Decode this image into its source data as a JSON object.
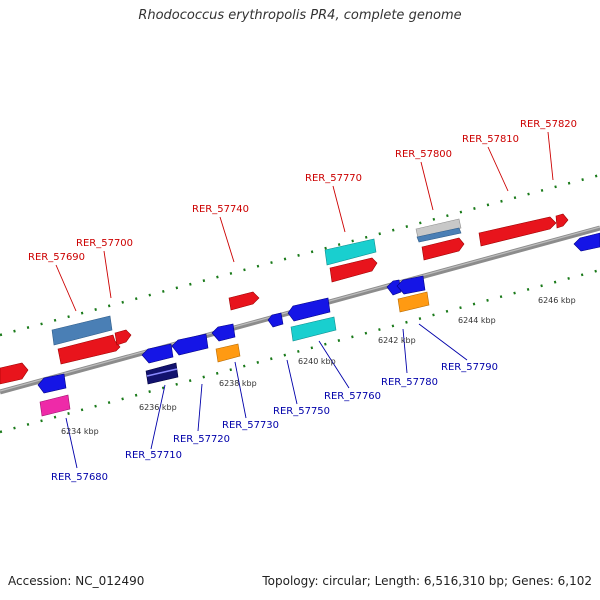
{
  "title": "Rhodococcus erythropolis PR4, complete genome",
  "footer": {
    "accession": "Accession: NC_012490",
    "summary": "Topology: circular; Length: 6,516,310 bp; Genes: 6,102"
  },
  "colors": {
    "backbone": "#8c8c8c",
    "dots": "#1a7a1a",
    "label_top": "#cc0000",
    "label_bottom": "#0000aa"
  },
  "ticks": [
    {
      "label": "6234 kbp"
    },
    {
      "label": "6236 kbp"
    },
    {
      "label": "6238 kbp"
    },
    {
      "label": "6240 kbp"
    },
    {
      "label": "6242 kbp"
    },
    {
      "label": "6244 kbp"
    },
    {
      "label": "6246 kbp"
    }
  ],
  "top_labels": [
    {
      "text": "RER_57690"
    },
    {
      "text": "RER_57700"
    },
    {
      "text": "RER_57740"
    },
    {
      "text": "RER_57770"
    },
    {
      "text": "RER_57800"
    },
    {
      "text": "RER_57810"
    },
    {
      "text": "RER_57820"
    }
  ],
  "bottom_labels": [
    {
      "text": "RER_57680"
    },
    {
      "text": "RER_57710"
    },
    {
      "text": "RER_57720"
    },
    {
      "text": "RER_57730"
    },
    {
      "text": "RER_57750"
    },
    {
      "text": "RER_57760"
    },
    {
      "text": "RER_57780"
    },
    {
      "text": "RER_57790"
    }
  ]
}
